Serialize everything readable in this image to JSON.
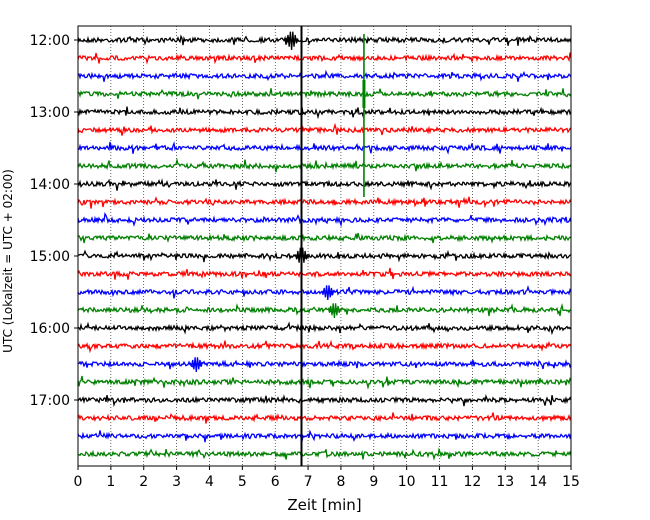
{
  "chart_data": {
    "type": "line",
    "title": "",
    "xlabel": "Zeit  [min]",
    "ylabel": "UTC (Lokalzeit = UTC + 02:00)",
    "xlim": [
      0,
      15
    ],
    "x_ticks": [
      0,
      1,
      2,
      3,
      4,
      5,
      6,
      7,
      8,
      9,
      10,
      11,
      12,
      13,
      14,
      15
    ],
    "x_tick_labels": [
      "0",
      "1",
      "2",
      "3",
      "4",
      "5",
      "6",
      "7",
      "8",
      "9",
      "10",
      "11",
      "12",
      "13",
      "14",
      "15"
    ],
    "y_tick_labels": [
      "12:00",
      "13:00",
      "14:00",
      "15:00",
      "16:00",
      "17:00"
    ],
    "y_tick_rows": [
      0,
      4,
      8,
      12,
      16,
      20
    ],
    "grid": "vertical-dotted",
    "trace_minutes": 15,
    "color_cycle": [
      "#000000",
      "#ff0000",
      "#0000ff",
      "#008000"
    ],
    "traces": [
      {
        "start": "12:00",
        "color": "#000000"
      },
      {
        "start": "12:15",
        "color": "#ff0000"
      },
      {
        "start": "12:30",
        "color": "#0000ff"
      },
      {
        "start": "12:45",
        "color": "#008000"
      },
      {
        "start": "13:00",
        "color": "#000000"
      },
      {
        "start": "13:15",
        "color": "#ff0000"
      },
      {
        "start": "13:30",
        "color": "#0000ff"
      },
      {
        "start": "13:45",
        "color": "#008000"
      },
      {
        "start": "14:00",
        "color": "#000000"
      },
      {
        "start": "14:15",
        "color": "#ff0000"
      },
      {
        "start": "14:30",
        "color": "#0000ff"
      },
      {
        "start": "14:45",
        "color": "#008000"
      },
      {
        "start": "15:00",
        "color": "#000000"
      },
      {
        "start": "15:15",
        "color": "#ff0000"
      },
      {
        "start": "15:30",
        "color": "#0000ff"
      },
      {
        "start": "15:45",
        "color": "#008000"
      },
      {
        "start": "16:00",
        "color": "#000000"
      },
      {
        "start": "16:15",
        "color": "#ff0000"
      },
      {
        "start": "16:30",
        "color": "#0000ff"
      },
      {
        "start": "16:45",
        "color": "#008000"
      },
      {
        "start": "17:00",
        "color": "#000000"
      },
      {
        "start": "17:15",
        "color": "#ff0000"
      },
      {
        "start": "17:30",
        "color": "#0000ff"
      },
      {
        "start": "17:45",
        "color": "#008000"
      }
    ],
    "vertical_marker": {
      "x": 6.8,
      "color": "#000000"
    },
    "events": [
      {
        "row": 0,
        "x": 6.5,
        "amplitude": "medium",
        "color": "#000000"
      },
      {
        "row": 12,
        "x": 6.8,
        "amplitude": "medium",
        "color": "#000000"
      },
      {
        "row": 3,
        "x": 8.7,
        "amplitude": "large",
        "color": "#008000",
        "extent_rows": [
          0,
          8.5
        ]
      },
      {
        "row": 15,
        "x": 7.8,
        "amplitude": "small",
        "color": "#008000"
      },
      {
        "row": 14,
        "x": 7.6,
        "amplitude": "small",
        "color": "#0000ff"
      },
      {
        "row": 18,
        "x": 3.6,
        "amplitude": "small",
        "color": "#0000ff"
      }
    ]
  }
}
